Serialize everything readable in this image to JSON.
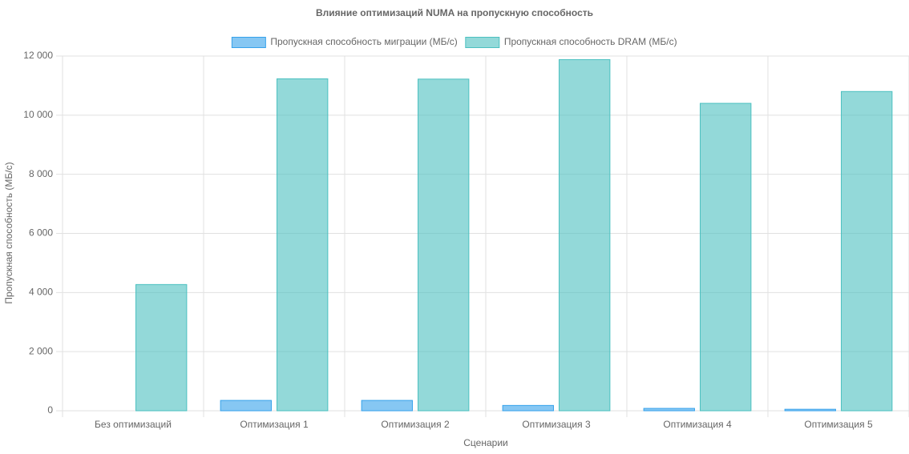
{
  "chart_data": {
    "type": "bar",
    "title": "Влияние оптимизаций NUMA на пропускную способность",
    "x_label": "Сценарии",
    "y_label": "Пропускная способность (МБ/с)",
    "categories": [
      "Без оптимизаций",
      "Оптимизация 1",
      "Оптимизация 2",
      "Оптимизация 3",
      "Оптимизация 4",
      "Оптимизация 5"
    ],
    "series": [
      {
        "name": "Пропускная способность миграции (МБ/с)",
        "color": "#36a2eb",
        "values": [
          0,
          350,
          350,
          180,
          80,
          50
        ]
      },
      {
        "name": "Пропускная способность DRAM (МБ/с)",
        "color": "#4bc0c0",
        "values": [
          4270,
          11230,
          11220,
          11880,
          10400,
          10800
        ]
      }
    ],
    "ylim": [
      0,
      12000
    ],
    "yticks": [
      0,
      {
        "value": 2000,
        "label": "2 000"
      },
      {
        "value": 4000,
        "label": "4 000"
      },
      {
        "value": 6000,
        "label": "6 000"
      },
      {
        "value": 8000,
        "label": "8 000"
      },
      {
        "value": 10000,
        "label": "10 000"
      },
      {
        "value": 12000,
        "label": "12 000"
      }
    ],
    "grid": true,
    "legend": "top"
  }
}
